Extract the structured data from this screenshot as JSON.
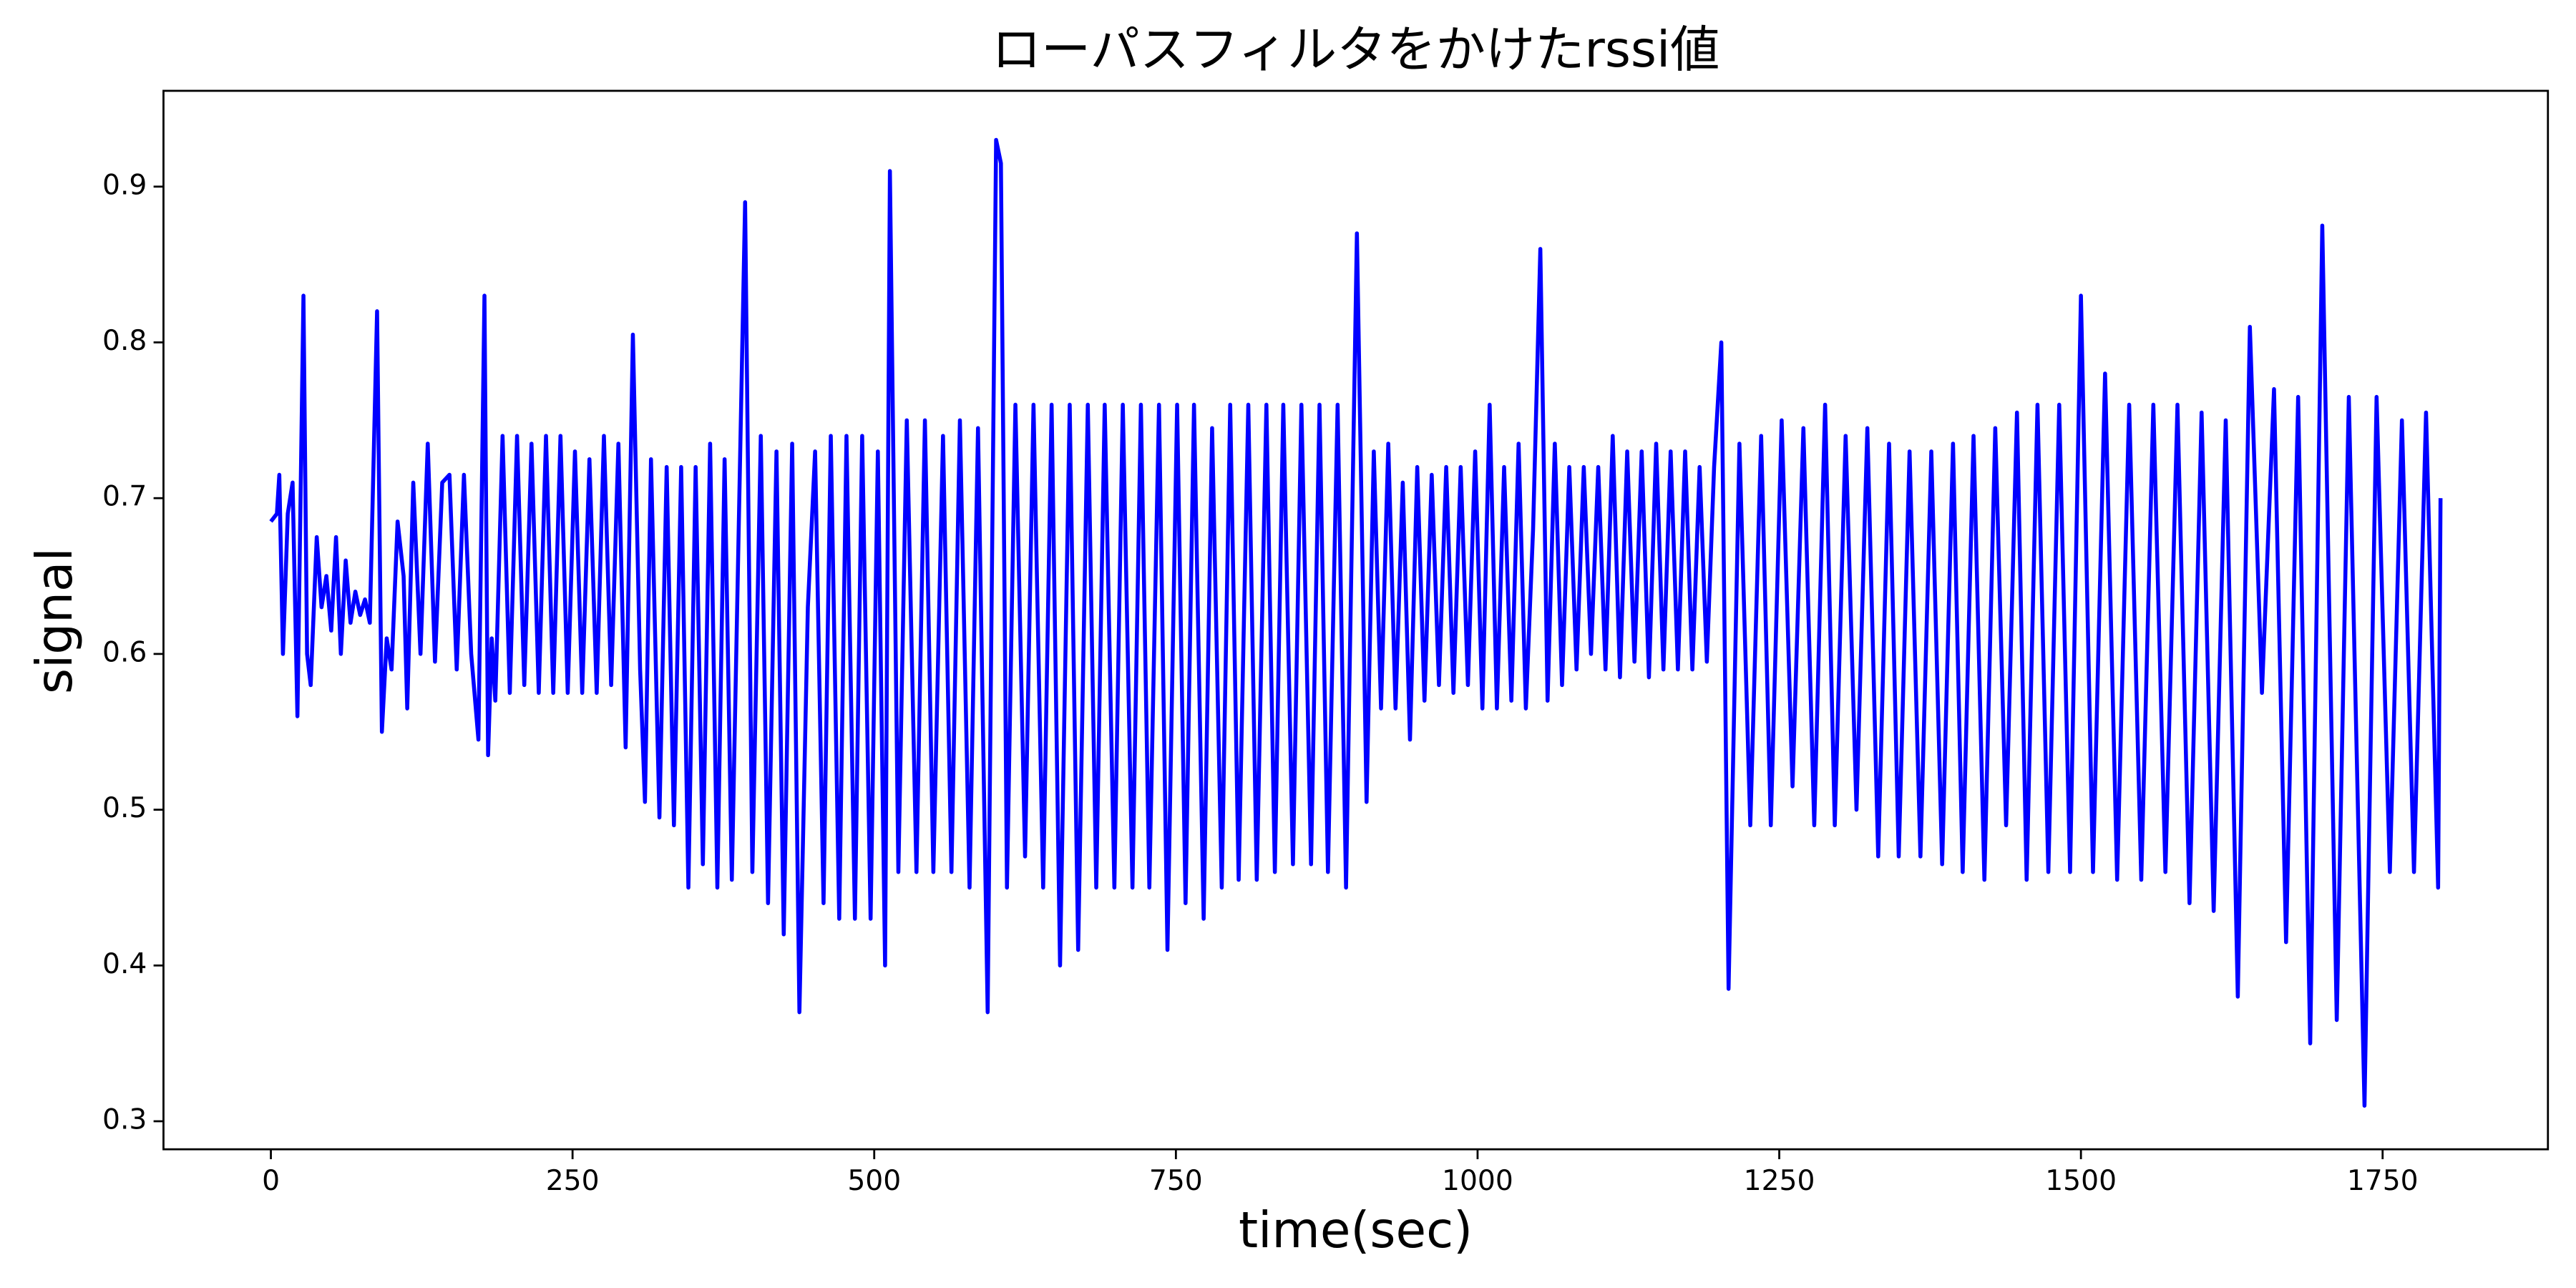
{
  "chart_data": {
    "type": "line",
    "title": "ローパスフィルタをかけたrssi値",
    "x_label": "time(sec)",
    "y_label": "signal",
    "color": "#0000ff",
    "xlim": [
      -89,
      1887
    ],
    "ylim": [
      0.282,
      0.9615
    ],
    "xticks": [
      0,
      250,
      500,
      750,
      1000,
      1250,
      1500,
      1750
    ],
    "yticks": [
      0.3,
      0.4,
      0.5,
      0.6,
      0.7,
      0.8,
      0.9
    ],
    "grid": false,
    "x": [
      0,
      5,
      7,
      10,
      14,
      18,
      22,
      27,
      30,
      33,
      38,
      42,
      46,
      50,
      54,
      58,
      62,
      66,
      70,
      74,
      78,
      82,
      88,
      92,
      96,
      100,
      105,
      110,
      113,
      118,
      124,
      130,
      136,
      142,
      148,
      154,
      160,
      166,
      172,
      177,
      180,
      183,
      186,
      192,
      198,
      204,
      210,
      216,
      222,
      228,
      234,
      240,
      246,
      252,
      258,
      264,
      270,
      276,
      282,
      288,
      294,
      300,
      306,
      310,
      315,
      322,
      328,
      334,
      340,
      346,
      352,
      358,
      364,
      370,
      376,
      382,
      393,
      399,
      406,
      412,
      419,
      425,
      432,
      438,
      445,
      451,
      458,
      464,
      471,
      477,
      484,
      490,
      497,
      503,
      509,
      513,
      520,
      527,
      535,
      542,
      549,
      557,
      564,
      571,
      579,
      586,
      594,
      601,
      605,
      610,
      617,
      625,
      632,
      640,
      647,
      654,
      662,
      669,
      677,
      684,
      691,
      699,
      706,
      714,
      721,
      728,
      736,
      743,
      751,
      758,
      765,
      773,
      780,
      788,
      795,
      802,
      810,
      817,
      825,
      832,
      839,
      847,
      854,
      862,
      869,
      876,
      884,
      891,
      900,
      908,
      914,
      920,
      926,
      932,
      938,
      944,
      950,
      956,
      962,
      968,
      974,
      980,
      986,
      992,
      998,
      1004,
      1010,
      1016,
      1022,
      1028,
      1034,
      1040,
      1046,
      1052,
      1058,
      1064,
      1070,
      1076,
      1082,
      1088,
      1094,
      1100,
      1106,
      1112,
      1118,
      1124,
      1130,
      1136,
      1142,
      1148,
      1154,
      1160,
      1166,
      1172,
      1178,
      1184,
      1190,
      1196,
      1202,
      1208,
      1217,
      1226,
      1235,
      1243,
      1252,
      1261,
      1270,
      1279,
      1288,
      1296,
      1305,
      1314,
      1323,
      1332,
      1341,
      1349,
      1358,
      1367,
      1376,
      1385,
      1394,
      1402,
      1411,
      1420,
      1429,
      1438,
      1447,
      1455,
      1464,
      1473,
      1482,
      1491,
      1500,
      1510,
      1520,
      1530,
      1540,
      1550,
      1560,
      1570,
      1580,
      1590,
      1600,
      1610,
      1620,
      1630,
      1640,
      1650,
      1660,
      1670,
      1680,
      1690,
      1700,
      1712,
      1722,
      1735,
      1745,
      1756,
      1766,
      1776,
      1786,
      1796,
      1798
    ],
    "values": [
      0.685,
      0.69,
      0.715,
      0.6,
      0.69,
      0.71,
      0.56,
      0.83,
      0.6,
      0.58,
      0.675,
      0.63,
      0.65,
      0.615,
      0.675,
      0.6,
      0.66,
      0.62,
      0.64,
      0.625,
      0.635,
      0.62,
      0.82,
      0.55,
      0.61,
      0.59,
      0.685,
      0.65,
      0.565,
      0.71,
      0.6,
      0.735,
      0.595,
      0.71,
      0.715,
      0.59,
      0.715,
      0.6,
      0.545,
      0.83,
      0.535,
      0.61,
      0.57,
      0.74,
      0.575,
      0.74,
      0.58,
      0.735,
      0.575,
      0.74,
      0.575,
      0.74,
      0.575,
      0.73,
      0.575,
      0.725,
      0.575,
      0.74,
      0.58,
      0.735,
      0.54,
      0.805,
      0.59,
      0.505,
      0.725,
      0.495,
      0.72,
      0.49,
      0.72,
      0.45,
      0.72,
      0.465,
      0.735,
      0.45,
      0.725,
      0.455,
      0.89,
      0.46,
      0.74,
      0.44,
      0.73,
      0.42,
      0.735,
      0.37,
      0.63,
      0.73,
      0.44,
      0.74,
      0.43,
      0.74,
      0.43,
      0.74,
      0.43,
      0.73,
      0.4,
      0.91,
      0.46,
      0.75,
      0.46,
      0.75,
      0.46,
      0.74,
      0.46,
      0.75,
      0.45,
      0.745,
      0.37,
      0.93,
      0.915,
      0.45,
      0.76,
      0.47,
      0.76,
      0.45,
      0.76,
      0.4,
      0.76,
      0.41,
      0.76,
      0.45,
      0.76,
      0.45,
      0.76,
      0.45,
      0.76,
      0.45,
      0.76,
      0.41,
      0.76,
      0.44,
      0.76,
      0.43,
      0.745,
      0.45,
      0.76,
      0.455,
      0.76,
      0.455,
      0.76,
      0.46,
      0.76,
      0.465,
      0.76,
      0.465,
      0.76,
      0.46,
      0.76,
      0.45,
      0.87,
      0.505,
      0.73,
      0.565,
      0.735,
      0.565,
      0.71,
      0.545,
      0.72,
      0.57,
      0.715,
      0.58,
      0.72,
      0.575,
      0.72,
      0.58,
      0.73,
      0.565,
      0.76,
      0.565,
      0.72,
      0.57,
      0.735,
      0.565,
      0.68,
      0.86,
      0.57,
      0.735,
      0.58,
      0.72,
      0.59,
      0.72,
      0.6,
      0.72,
      0.59,
      0.74,
      0.585,
      0.73,
      0.595,
      0.73,
      0.585,
      0.735,
      0.59,
      0.73,
      0.59,
      0.73,
      0.59,
      0.72,
      0.595,
      0.72,
      0.8,
      0.385,
      0.735,
      0.49,
      0.74,
      0.49,
      0.75,
      0.515,
      0.745,
      0.49,
      0.76,
      0.49,
      0.74,
      0.5,
      0.745,
      0.47,
      0.735,
      0.47,
      0.73,
      0.47,
      0.73,
      0.465,
      0.735,
      0.46,
      0.74,
      0.455,
      0.745,
      0.49,
      0.755,
      0.455,
      0.76,
      0.46,
      0.76,
      0.46,
      0.83,
      0.46,
      0.78,
      0.455,
      0.76,
      0.455,
      0.76,
      0.46,
      0.76,
      0.44,
      0.755,
      0.435,
      0.75,
      0.38,
      0.81,
      0.575,
      0.77,
      0.415,
      0.765,
      0.35,
      0.875,
      0.365,
      0.765,
      0.31,
      0.765,
      0.46,
      0.75,
      0.46,
      0.755,
      0.45,
      0.7
    ]
  }
}
